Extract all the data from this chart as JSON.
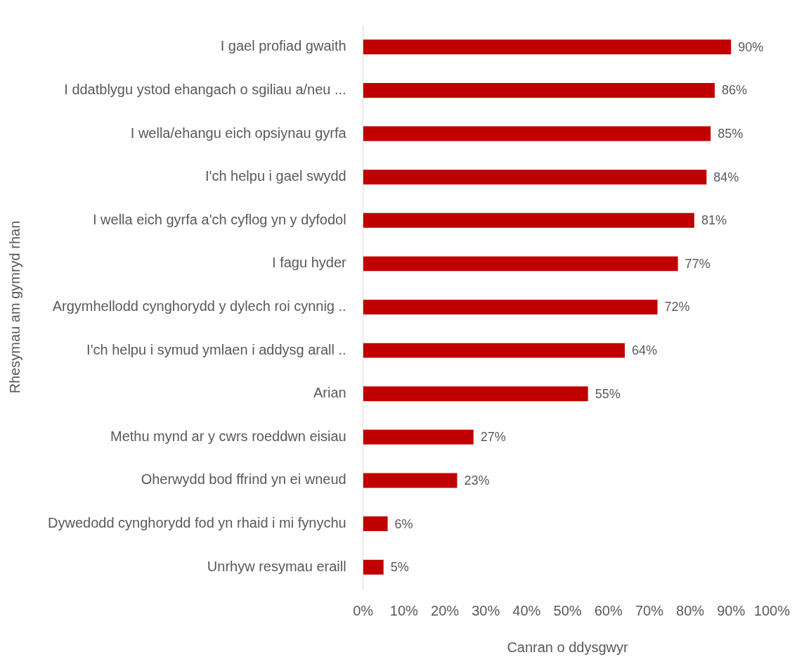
{
  "chart_data": {
    "type": "bar",
    "orientation": "horizontal",
    "xlabel": "Canran o ddysgwyr",
    "ylabel": "Rhesymau am gymryd rhan",
    "categories": [
      "I gael profiad gwaith",
      "I ddatblygu ystod ehangach o sgiliau a/neu ...",
      "I wella/ehangu eich opsiynau gyrfa",
      "I'ch helpu i gael swydd",
      "I wella eich gyrfa a'ch cyflog yn y dyfodol",
      "I fagu hyder",
      "Argymhellodd cynghorydd y dylech roi cynnig ..",
      "I'ch helpu i symud ymlaen i addysg arall ..",
      "Arian",
      "Methu mynd ar y cwrs roeddwn eisiau",
      "Oherwydd bod ffrind yn ei wneud",
      "Dywedodd cynghorydd fod yn rhaid i mi fynychu",
      "Unrhyw resymau eraill"
    ],
    "values": [
      90,
      86,
      85,
      84,
      81,
      77,
      72,
      64,
      55,
      27,
      23,
      6,
      5
    ],
    "value_labels": [
      "90%",
      "86%",
      "85%",
      "84%",
      "81%",
      "77%",
      "72%",
      "64%",
      "55%",
      "27%",
      "23%",
      "6%",
      "5%"
    ],
    "color": "#c00000",
    "xlim": [
      0,
      100
    ],
    "xticks": [
      {
        "value": 0,
        "label": "0%"
      },
      {
        "value": 10,
        "label": "10%"
      },
      {
        "value": 20,
        "label": "20%"
      },
      {
        "value": 30,
        "label": "30%"
      },
      {
        "value": 40,
        "label": "40%"
      },
      {
        "value": 50,
        "label": "50%"
      },
      {
        "value": 60,
        "label": "60%"
      },
      {
        "value": 70,
        "label": "70%"
      },
      {
        "value": 80,
        "label": "80%"
      },
      {
        "value": 90,
        "label": "90%"
      },
      {
        "value": 100,
        "label": "100%"
      }
    ],
    "grid": false,
    "legend": false
  }
}
